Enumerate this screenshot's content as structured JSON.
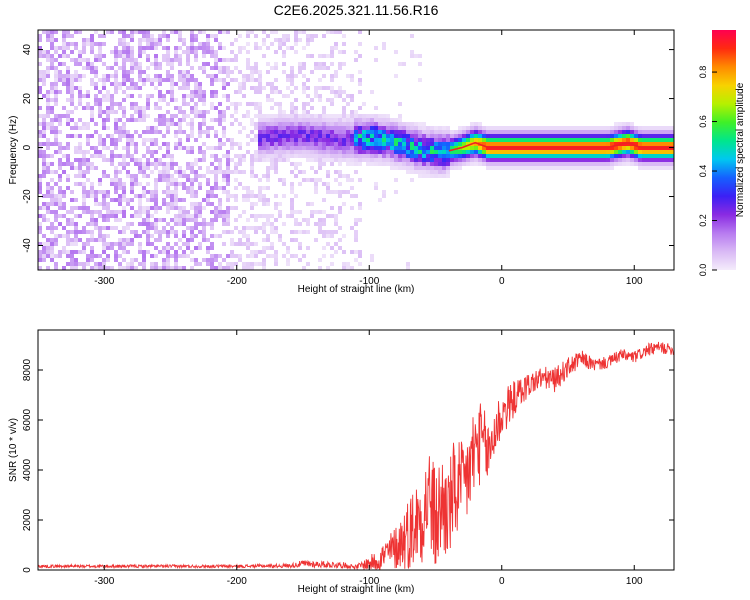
{
  "figure_title": "C2E6.2025.321.11.56.R16",
  "colors": {
    "snr_line": "#ee3333",
    "core_line": "#ee2222",
    "frame": "#000000",
    "colormap": [
      "#f4ecfb",
      "#d9b9f5",
      "#b77bf0",
      "#8a2be2",
      "#3b20f5",
      "#1560ff",
      "#00c8f0",
      "#00e68c",
      "#3ff028",
      "#b6f000",
      "#f8d200",
      "#ff8a00",
      "#ff2a10",
      "#ff0050"
    ]
  },
  "chart_data": [
    {
      "type": "heatmap",
      "title": "C2E6.2025.321.11.56.R16",
      "xlabel": "Height of straight line (km)",
      "ylabel": "Frequency (Hz)",
      "xlim": [
        -350,
        130
      ],
      "ylim": [
        -50,
        48
      ],
      "xticks": [
        -300,
        -200,
        -100,
        0,
        100
      ],
      "xtick_labels": [
        "-300",
        "-200",
        "-100",
        "0",
        "100"
      ],
      "yticks": [
        -40,
        -20,
        0,
        20,
        40
      ],
      "ytick_labels": [
        "-40",
        "-20",
        "0",
        "20",
        "40"
      ],
      "colorbar": {
        "label": "Normalized spectral amplitude",
        "range": [
          0,
          0.97
        ],
        "ticks": [
          0,
          0.2,
          0.4,
          0.6,
          0.8
        ],
        "tick_labels": [
          "0.0",
          "0.2",
          "0.4",
          "0.6",
          "0.8"
        ]
      },
      "regions": [
        {
          "x_range": [
            -350,
            -205
          ],
          "description": "dense noise, amplitude about 0.1 spread across all frequencies"
        },
        {
          "x_range": [
            -205,
            -105
          ],
          "description": "sparser noise, amplitude about 0.05"
        },
        {
          "x_range": [
            -180,
            -110
          ],
          "description": "emerging signal near 4 Hz, amplitude 0.15-0.30"
        },
        {
          "x_range": [
            -110,
            -40
          ],
          "description": "signal near 0 to 5 Hz, amplitude 0.3-0.6"
        },
        {
          "x_range": [
            -40,
            130
          ],
          "description": "strong narrow signal near 0 Hz, peak amplitude about 0.9"
        }
      ],
      "signal_center_hz": [
        {
          "x": -180,
          "f": 4
        },
        {
          "x": -150,
          "f": 5
        },
        {
          "x": -120,
          "f": 3
        },
        {
          "x": -100,
          "f": 4
        },
        {
          "x": -80,
          "f": 2
        },
        {
          "x": -60,
          "f": -1
        },
        {
          "x": -45,
          "f": -2
        },
        {
          "x": -30,
          "f": 0
        },
        {
          "x": -20,
          "f": 2
        },
        {
          "x": -10,
          "f": 0
        },
        {
          "x": 0,
          "f": 0
        },
        {
          "x": 50,
          "f": 0
        },
        {
          "x": 80,
          "f": 0
        },
        {
          "x": 95,
          "f": 2
        },
        {
          "x": 105,
          "f": 0
        },
        {
          "x": 130,
          "f": 0
        }
      ]
    },
    {
      "type": "line",
      "xlabel": "Height of straight line (km)",
      "ylabel": "SNR (10 * v/v)",
      "xlim": [
        -350,
        130
      ],
      "ylim": [
        0,
        9600
      ],
      "xticks": [
        -300,
        -200,
        -100,
        0,
        100
      ],
      "xtick_labels": [
        "-300",
        "-200",
        "-100",
        "0",
        "100"
      ],
      "yticks": [
        0,
        2000,
        4000,
        6000,
        8000
      ],
      "ytick_labels": [
        "0",
        "2000",
        "4000",
        "6000",
        "8000"
      ],
      "series": [
        {
          "x": [
            -350,
            -300,
            -250,
            -200,
            -160,
            -150,
            -120,
            -110,
            -95,
            -80,
            -70,
            -60,
            -55,
            -50,
            -45,
            -40,
            -35,
            -30,
            -25,
            -20,
            -15,
            -10,
            -5,
            0,
            10,
            20,
            30,
            40,
            50,
            60,
            70,
            80,
            90,
            100,
            110,
            120,
            130
          ],
          "values": [
            150,
            150,
            150,
            150,
            170,
            250,
            200,
            120,
            350,
            900,
            1500,
            2200,
            3000,
            1900,
            2600,
            2300,
            3300,
            3100,
            3900,
            4800,
            5200,
            4600,
            5600,
            6200,
            6900,
            7400,
            7700,
            7600,
            8100,
            8450,
            8200,
            8300,
            8600,
            8500,
            8800,
            8900,
            8800
          ],
          "noise_amplitude": [
            60,
            60,
            60,
            60,
            80,
            150,
            120,
            80,
            400,
            900,
            1500,
            1900,
            2100,
            2200,
            2200,
            2000,
            2200,
            2000,
            2000,
            2000,
            1500,
            1400,
            1200,
            1000,
            700,
            500,
            450,
            500,
            400,
            350,
            250,
            250,
            250,
            250,
            250,
            250,
            200
          ]
        }
      ]
    }
  ]
}
